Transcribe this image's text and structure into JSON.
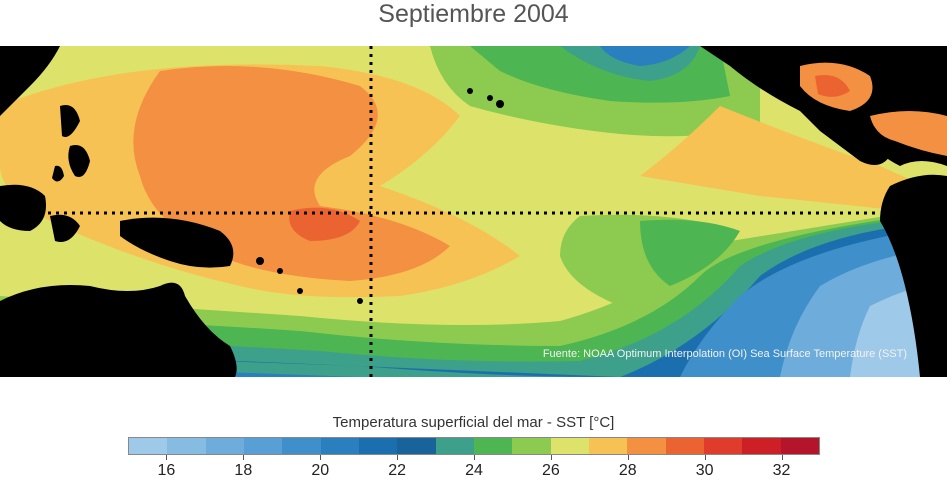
{
  "title": "Septiembre 2004",
  "map": {
    "region": "Pacífico tropical",
    "variable": "SST",
    "land_color": "#000000",
    "overlay_lines": [
      "equator-dotted-line",
      "dateline-dotted-line"
    ],
    "source": "Fuente: NOAA Optimum Interpolation (OI) Sea Surface Temperature (SST)"
  },
  "colorbar": {
    "title": "Temperatura superficial del mar - SST  [°C]",
    "colors": [
      "#9ec9e8",
      "#86bbe2",
      "#6eaddb",
      "#579fd4",
      "#3f8fca",
      "#2a7fbf",
      "#1c6fae",
      "#186399",
      "#3da08a",
      "#4db552",
      "#8ccb4f",
      "#dde36a",
      "#f7c254",
      "#f39041",
      "#ec6332",
      "#df3c2b",
      "#cc1f26",
      "#b5152a"
    ],
    "tick_labels": [
      "16",
      "18",
      "20",
      "22",
      "24",
      "26",
      "28",
      "30",
      "32"
    ]
  }
}
